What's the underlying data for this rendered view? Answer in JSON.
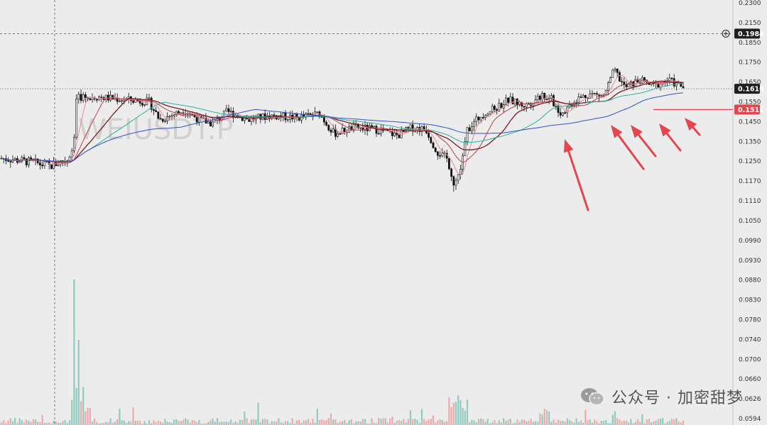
{
  "chart_data": {
    "type": "candlestick",
    "symbol_watermark": "WEIUSDT.P",
    "price_axis": {
      "ticks": [
        "0.2300",
        "0.2150",
        "0.1850",
        "0.1750",
        "0.1650",
        "0.1550",
        "0.1450",
        "0.1350",
        "0.1250",
        "0.1170",
        "0.1110",
        "0.1050",
        "0.0990",
        "0.0930",
        "0.0880",
        "0.0830",
        "0.0780",
        "0.0740",
        "0.0700",
        "0.0660",
        "0.0626",
        "0.0594"
      ],
      "tick_values": [
        0.23,
        0.215,
        0.185,
        0.175,
        0.165,
        0.155,
        0.145,
        0.135,
        0.125,
        0.117,
        0.111,
        0.105,
        0.099,
        0.093,
        0.088,
        0.083,
        0.078,
        0.074,
        0.07,
        0.066,
        0.0626,
        0.0594
      ]
    },
    "crosshair_price": "0.1984",
    "last_price": "0.1616",
    "ma_price": "0.1511",
    "ma_lines": [
      {
        "color": "#e88a9a"
      },
      {
        "color": "#c04050"
      },
      {
        "color": "#7a1c24"
      },
      {
        "color": "#2bb3a0"
      },
      {
        "color": "#3050d0"
      }
    ],
    "colors": {
      "up": "#22a58a",
      "down": "#f05a5a",
      "neutral": "#111111",
      "arrow": "#e4464e"
    }
  },
  "watermark": {
    "label": "公众号 · 加密甜梦"
  }
}
